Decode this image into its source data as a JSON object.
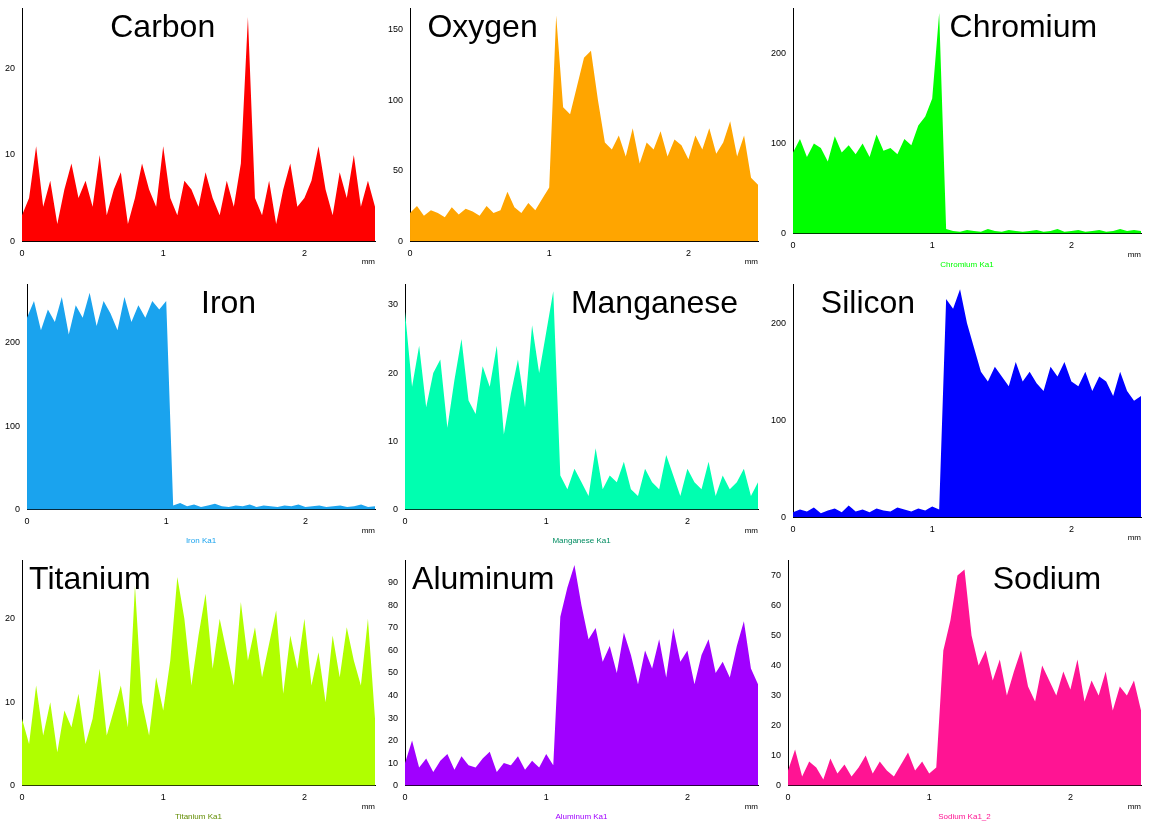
{
  "chart_data": [
    {
      "type": "area",
      "title": "Carbon",
      "x": [
        0,
        0.05,
        0.1,
        0.15,
        0.2,
        0.25,
        0.3,
        0.35,
        0.4,
        0.45,
        0.5,
        0.55,
        0.6,
        0.65,
        0.7,
        0.75,
        0.8,
        0.85,
        0.9,
        0.95,
        1,
        1.05,
        1.1,
        1.15,
        1.2,
        1.25,
        1.3,
        1.35,
        1.4,
        1.45,
        1.5,
        1.55,
        1.6,
        1.65,
        1.7,
        1.75,
        1.8,
        1.85,
        1.9,
        1.95,
        2,
        2.05,
        2.1,
        2.15,
        2.2,
        2.25,
        2.3,
        2.35,
        2.4,
        2.45,
        2.5
      ],
      "xlim": [
        0,
        2.5
      ],
      "xticks": [
        0,
        1,
        2
      ],
      "ylim": [
        0,
        27
      ],
      "yticks": [
        0,
        10,
        20
      ],
      "grid": false,
      "legend": false,
      "annotations": [
        "mm"
      ],
      "series": [
        {
          "color": "#ff0000",
          "values": [
            3,
            5,
            11,
            4,
            7,
            2,
            6,
            9,
            5,
            7,
            4,
            10,
            3,
            6,
            8,
            2,
            5,
            9,
            6,
            4,
            11,
            5,
            3,
            7,
            6,
            4,
            8,
            5,
            3,
            7,
            4,
            9,
            26,
            5,
            3,
            7,
            2,
            6,
            9,
            4,
            5,
            7,
            11,
            6,
            3,
            8,
            5,
            10,
            4,
            7,
            4
          ]
        }
      ]
    },
    {
      "type": "area",
      "title": "Oxygen",
      "x": [
        0,
        0.05,
        0.1,
        0.15,
        0.2,
        0.25,
        0.3,
        0.35,
        0.4,
        0.45,
        0.5,
        0.55,
        0.6,
        0.65,
        0.7,
        0.75,
        0.8,
        0.85,
        0.9,
        0.95,
        1,
        1.05,
        1.1,
        1.15,
        1.2,
        1.25,
        1.3,
        1.35,
        1.4,
        1.45,
        1.5,
        1.55,
        1.6,
        1.65,
        1.7,
        1.75,
        1.8,
        1.85,
        1.9,
        1.95,
        2,
        2.05,
        2.1,
        2.15,
        2.2,
        2.25,
        2.3,
        2.35,
        2.4,
        2.45,
        2.5
      ],
      "xlim": [
        0,
        2.5
      ],
      "xticks": [
        0,
        1,
        2
      ],
      "ylim": [
        0,
        165
      ],
      "yticks": [
        0,
        50,
        100,
        150
      ],
      "grid": false,
      "legend": false,
      "annotations": [
        "mm"
      ],
      "series": [
        {
          "color": "#ffa500",
          "values": [
            20,
            25,
            18,
            22,
            20,
            17,
            24,
            19,
            23,
            21,
            18,
            25,
            20,
            22,
            35,
            24,
            20,
            27,
            22,
            30,
            38,
            160,
            95,
            90,
            110,
            130,
            135,
            100,
            70,
            65,
            75,
            60,
            80,
            55,
            70,
            65,
            78,
            60,
            72,
            68,
            58,
            75,
            65,
            80,
            62,
            70,
            85,
            60,
            75,
            45,
            40
          ]
        }
      ]
    },
    {
      "type": "area",
      "title": "Chromium",
      "xlabel": "Chromium Ka1",
      "x": [
        0,
        0.05,
        0.1,
        0.15,
        0.2,
        0.25,
        0.3,
        0.35,
        0.4,
        0.45,
        0.5,
        0.55,
        0.6,
        0.65,
        0.7,
        0.75,
        0.8,
        0.85,
        0.9,
        0.95,
        1,
        1.05,
        1.1,
        1.15,
        1.2,
        1.25,
        1.3,
        1.35,
        1.4,
        1.45,
        1.5,
        1.55,
        1.6,
        1.65,
        1.7,
        1.75,
        1.8,
        1.85,
        1.9,
        1.95,
        2,
        2.05,
        2.1,
        2.15,
        2.2,
        2.25,
        2.3,
        2.35,
        2.4,
        2.45,
        2.5
      ],
      "xlim": [
        0,
        2.5
      ],
      "xticks": [
        0,
        1,
        2
      ],
      "ylim": [
        0,
        250
      ],
      "yticks": [
        0,
        100,
        200
      ],
      "grid": false,
      "legend": false,
      "annotations": [
        "mm"
      ],
      "series": [
        {
          "color": "#00ff00",
          "values": [
            90,
            105,
            85,
            100,
            95,
            80,
            108,
            90,
            98,
            88,
            100,
            85,
            110,
            92,
            95,
            88,
            105,
            98,
            120,
            130,
            150,
            245,
            5,
            3,
            2,
            4,
            3,
            2,
            5,
            3,
            2,
            4,
            3,
            2,
            3,
            4,
            2,
            3,
            5,
            2,
            3,
            4,
            2,
            3,
            4,
            2,
            3,
            5,
            3,
            4,
            3
          ]
        }
      ]
    },
    {
      "type": "area",
      "title": "Iron",
      "xlabel": "Iron Ka1",
      "x": [
        0,
        0.05,
        0.1,
        0.15,
        0.2,
        0.25,
        0.3,
        0.35,
        0.4,
        0.45,
        0.5,
        0.55,
        0.6,
        0.65,
        0.7,
        0.75,
        0.8,
        0.85,
        0.9,
        0.95,
        1,
        1.05,
        1.1,
        1.15,
        1.2,
        1.25,
        1.3,
        1.35,
        1.4,
        1.45,
        1.5,
        1.55,
        1.6,
        1.65,
        1.7,
        1.75,
        1.8,
        1.85,
        1.9,
        1.95,
        2,
        2.05,
        2.1,
        2.15,
        2.2,
        2.25,
        2.3,
        2.35,
        2.4,
        2.45,
        2.5
      ],
      "xlim": [
        0,
        2.5
      ],
      "xticks": [
        0,
        1,
        2
      ],
      "ylim": [
        0,
        270
      ],
      "yticks": [
        0,
        100,
        200
      ],
      "grid": false,
      "legend": false,
      "annotations": [
        "mm"
      ],
      "series": [
        {
          "color": "#1aa3ee",
          "values": [
            230,
            250,
            215,
            240,
            225,
            255,
            210,
            245,
            230,
            260,
            220,
            250,
            235,
            215,
            255,
            225,
            245,
            230,
            250,
            240,
            250,
            5,
            8,
            4,
            6,
            3,
            5,
            7,
            4,
            3,
            5,
            4,
            6,
            3,
            5,
            4,
            3,
            5,
            4,
            6,
            3,
            4,
            5,
            3,
            4,
            5,
            3,
            4,
            6,
            3,
            4
          ]
        }
      ]
    },
    {
      "type": "area",
      "title": "Manganese",
      "xlabel": "Manganese Ka1",
      "x": [
        0,
        0.05,
        0.1,
        0.15,
        0.2,
        0.25,
        0.3,
        0.35,
        0.4,
        0.45,
        0.5,
        0.55,
        0.6,
        0.65,
        0.7,
        0.75,
        0.8,
        0.85,
        0.9,
        0.95,
        1,
        1.05,
        1.1,
        1.15,
        1.2,
        1.25,
        1.3,
        1.35,
        1.4,
        1.45,
        1.5,
        1.55,
        1.6,
        1.65,
        1.7,
        1.75,
        1.8,
        1.85,
        1.9,
        1.95,
        2,
        2.05,
        2.1,
        2.15,
        2.2,
        2.25,
        2.3,
        2.35,
        2.4,
        2.45,
        2.5
      ],
      "xlim": [
        0,
        2.5
      ],
      "xticks": [
        0,
        1,
        2
      ],
      "ylim": [
        0,
        33
      ],
      "yticks": [
        0,
        10,
        20,
        30
      ],
      "grid": false,
      "legend": false,
      "annotations": [
        "mm"
      ],
      "series": [
        {
          "color": "#00ffb0",
          "values": [
            29,
            18,
            24,
            15,
            20,
            22,
            12,
            19,
            25,
            16,
            14,
            21,
            18,
            24,
            11,
            17,
            22,
            15,
            27,
            20,
            26,
            32,
            5,
            3,
            6,
            4,
            2,
            9,
            3,
            5,
            4,
            7,
            3,
            2,
            6,
            4,
            3,
            8,
            5,
            2,
            6,
            4,
            3,
            7,
            2,
            5,
            3,
            4,
            6,
            2,
            4
          ]
        }
      ]
    },
    {
      "type": "area",
      "title": "Silicon",
      "x": [
        0,
        0.05,
        0.1,
        0.15,
        0.2,
        0.25,
        0.3,
        0.35,
        0.4,
        0.45,
        0.5,
        0.55,
        0.6,
        0.65,
        0.7,
        0.75,
        0.8,
        0.85,
        0.9,
        0.95,
        1,
        1.05,
        1.1,
        1.15,
        1.2,
        1.25,
        1.3,
        1.35,
        1.4,
        1.45,
        1.5,
        1.55,
        1.6,
        1.65,
        1.7,
        1.75,
        1.8,
        1.85,
        1.9,
        1.95,
        2,
        2.05,
        2.1,
        2.15,
        2.2,
        2.25,
        2.3,
        2.35,
        2.4,
        2.45,
        2.5
      ],
      "xlim": [
        0,
        2.5
      ],
      "xticks": [
        0,
        1,
        2
      ],
      "ylim": [
        0,
        240
      ],
      "yticks": [
        0,
        100,
        200
      ],
      "grid": false,
      "legend": false,
      "annotations": [
        "mm"
      ],
      "series": [
        {
          "color": "#0000ff",
          "values": [
            5,
            8,
            6,
            10,
            4,
            7,
            9,
            5,
            12,
            6,
            8,
            5,
            9,
            7,
            6,
            10,
            8,
            6,
            9,
            7,
            11,
            8,
            225,
            215,
            235,
            200,
            175,
            150,
            140,
            155,
            145,
            135,
            160,
            140,
            150,
            138,
            130,
            155,
            145,
            160,
            140,
            135,
            150,
            130,
            145,
            140,
            125,
            150,
            130,
            120,
            125
          ]
        }
      ]
    },
    {
      "type": "area",
      "title": "Titanium",
      "xlabel": "Titanium Ka1",
      "x": [
        0,
        0.05,
        0.1,
        0.15,
        0.2,
        0.25,
        0.3,
        0.35,
        0.4,
        0.45,
        0.5,
        0.55,
        0.6,
        0.65,
        0.7,
        0.75,
        0.8,
        0.85,
        0.9,
        0.95,
        1,
        1.05,
        1.1,
        1.15,
        1.2,
        1.25,
        1.3,
        1.35,
        1.4,
        1.45,
        1.5,
        1.55,
        1.6,
        1.65,
        1.7,
        1.75,
        1.8,
        1.85,
        1.9,
        1.95,
        2,
        2.05,
        2.1,
        2.15,
        2.2,
        2.25,
        2.3,
        2.35,
        2.4,
        2.45,
        2.5
      ],
      "xlim": [
        0,
        2.5
      ],
      "xticks": [
        0,
        1,
        2
      ],
      "ylim": [
        0,
        27
      ],
      "yticks": [
        0,
        10,
        20
      ],
      "grid": false,
      "legend": false,
      "annotations": [
        "mm"
      ],
      "series": [
        {
          "color": "#b0ff00",
          "values": [
            8,
            5,
            12,
            6,
            10,
            4,
            9,
            7,
            11,
            5,
            8,
            14,
            6,
            9,
            12,
            7,
            24,
            10,
            6,
            13,
            9,
            15,
            25,
            20,
            12,
            18,
            23,
            14,
            20,
            16,
            12,
            22,
            15,
            19,
            13,
            17,
            21,
            11,
            18,
            14,
            20,
            12,
            16,
            10,
            18,
            13,
            19,
            15,
            12,
            20,
            8
          ]
        }
      ]
    },
    {
      "type": "area",
      "title": "Aluminum",
      "xlabel": "Aluminum Ka1",
      "x": [
        0,
        0.05,
        0.1,
        0.15,
        0.2,
        0.25,
        0.3,
        0.35,
        0.4,
        0.45,
        0.5,
        0.55,
        0.6,
        0.65,
        0.7,
        0.75,
        0.8,
        0.85,
        0.9,
        0.95,
        1,
        1.05,
        1.1,
        1.15,
        1.2,
        1.25,
        1.3,
        1.35,
        1.4,
        1.45,
        1.5,
        1.55,
        1.6,
        1.65,
        1.7,
        1.75,
        1.8,
        1.85,
        1.9,
        1.95,
        2,
        2.05,
        2.1,
        2.15,
        2.2,
        2.25,
        2.3,
        2.35,
        2.4,
        2.45,
        2.5
      ],
      "xlim": [
        0,
        2.5
      ],
      "xticks": [
        0,
        1,
        2
      ],
      "ylim": [
        0,
        100
      ],
      "yticks": [
        0,
        10,
        20,
        30,
        40,
        50,
        60,
        70,
        80,
        90
      ],
      "grid": false,
      "legend": false,
      "annotations": [
        "mm"
      ],
      "series": [
        {
          "color": "#a000ff",
          "values": [
            10,
            20,
            8,
            12,
            6,
            11,
            14,
            7,
            13,
            9,
            8,
            12,
            15,
            6,
            10,
            9,
            13,
            7,
            11,
            8,
            14,
            9,
            75,
            88,
            98,
            80,
            65,
            70,
            55,
            62,
            50,
            68,
            58,
            45,
            60,
            52,
            65,
            48,
            70,
            55,
            60,
            45,
            58,
            65,
            50,
            55,
            48,
            62,
            73,
            52,
            45
          ]
        }
      ]
    },
    {
      "type": "area",
      "title": "Sodium",
      "xlabel": "Sodium Ka1_2",
      "x": [
        0,
        0.05,
        0.1,
        0.15,
        0.2,
        0.25,
        0.3,
        0.35,
        0.4,
        0.45,
        0.5,
        0.55,
        0.6,
        0.65,
        0.7,
        0.75,
        0.8,
        0.85,
        0.9,
        0.95,
        1,
        1.05,
        1.1,
        1.15,
        1.2,
        1.25,
        1.3,
        1.35,
        1.4,
        1.45,
        1.5,
        1.55,
        1.6,
        1.65,
        1.7,
        1.75,
        1.8,
        1.85,
        1.9,
        1.95,
        2,
        2.05,
        2.1,
        2.15,
        2.2,
        2.25,
        2.3,
        2.35,
        2.4,
        2.45,
        2.5
      ],
      "xlim": [
        0,
        2.5
      ],
      "xticks": [
        0,
        1,
        2
      ],
      "ylim": [
        0,
        75
      ],
      "yticks": [
        0,
        10,
        20,
        30,
        40,
        50,
        60,
        70
      ],
      "grid": false,
      "legend": false,
      "annotations": [
        "mm"
      ],
      "series": [
        {
          "color": "#ff1493",
          "values": [
            5,
            12,
            3,
            8,
            6,
            2,
            9,
            4,
            7,
            3,
            6,
            10,
            4,
            8,
            5,
            3,
            7,
            11,
            5,
            8,
            4,
            6,
            45,
            55,
            70,
            72,
            50,
            40,
            45,
            35,
            42,
            30,
            38,
            45,
            33,
            28,
            40,
            35,
            30,
            38,
            32,
            42,
            28,
            35,
            30,
            38,
            25,
            33,
            30,
            35,
            25
          ]
        }
      ]
    }
  ]
}
